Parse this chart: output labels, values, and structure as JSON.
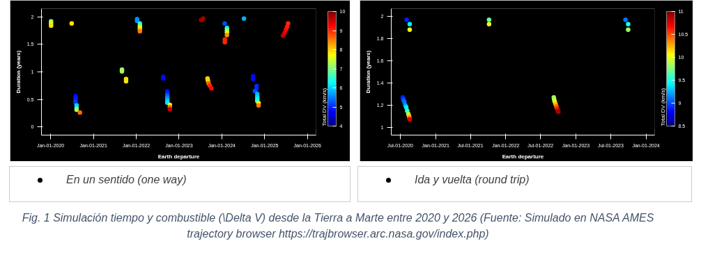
{
  "chart_data": [
    {
      "type": "scatter",
      "xlabel": "Earth departure",
      "ylabel": "Duration (years)",
      "clabel": "Total DV (km/s)",
      "marker": "circle",
      "annotations": [
        "En un sentido (one way)",
        "Fig. 1 Simulación tiempo y combustible (\\Delta V) desde la Tierra a Marte entre 2020 y 2026 (Fuente: Simulado en NASA AMES trajectory browser https://trajbrowser.arc.nasa.gov/index.php)"
      ],
      "xlim": [
        "2019-10-15",
        "2026-03-15"
      ],
      "ylim": [
        -0.15,
        2.15
      ],
      "xticks": [
        {
          "value": "2020-01-01",
          "label": "Jan-01-2020"
        },
        {
          "value": "2021-01-01",
          "label": "Jan-01-2021"
        },
        {
          "value": "2022-01-01",
          "label": "Jan-01-2022"
        },
        {
          "value": "2023-01-01",
          "label": "Jan-01-2023"
        },
        {
          "value": "2024-01-01",
          "label": "Jan-01-2024"
        },
        {
          "value": "2025-01-01",
          "label": "Jan-01-2025"
        },
        {
          "value": "2026-01-01",
          "label": "Jan-01-2026"
        }
      ],
      "yticks": [
        0,
        0.5,
        1,
        1.5,
        2
      ],
      "clim": [
        4,
        10
      ],
      "cticks": [
        4,
        5,
        6,
        7,
        8,
        9,
        10
      ],
      "x": [
        "2020-01-05",
        "2020-01-05",
        "2020-01-05",
        "2020-06-29",
        "2020-08-01",
        "2020-08-01",
        "2020-08-01",
        "2020-08-01",
        "2020-08-10",
        "2020-08-10",
        "2020-08-10",
        "2020-09-07",
        "2021-09-01",
        "2021-09-01",
        "2021-10-06",
        "2021-10-06",
        "2022-01-08",
        "2022-01-08",
        "2022-02-01",
        "2022-02-01",
        "2022-02-01",
        "2022-02-01",
        "2022-02-01",
        "2022-08-20",
        "2022-08-20",
        "2022-09-23",
        "2022-09-23",
        "2022-09-23",
        "2022-09-23",
        "2022-09-23",
        "2022-09-23",
        "2022-09-23",
        "2022-09-23",
        "2022-10-15",
        "2022-10-15",
        "2022-10-15",
        "2023-07-08",
        "2023-07-26",
        "2023-09-01",
        "2023-09-05",
        "2023-09-10",
        "2023-09-20",
        "2023-10-05",
        "2024-01-26",
        "2024-02-14",
        "2024-02-14",
        "2024-02-14",
        "2024-02-14",
        "2024-01-27",
        "2024-01-27",
        "2024-07-08",
        "2024-09-24",
        "2024-09-24",
        "2024-10-24",
        "2024-10-24",
        "2024-10-10",
        "2024-10-30",
        "2024-10-30",
        "2024-10-30",
        "2024-10-30",
        "2024-11-10",
        "2024-11-10",
        "2025-06-06",
        "2025-06-20",
        "2025-07-02",
        "2025-07-12",
        "2025-07-20"
      ],
      "values": [
        1.92,
        1.88,
        1.84,
        1.88,
        0.56,
        0.52,
        0.48,
        0.44,
        0.39,
        0.34,
        0.31,
        0.26,
        1.04,
        1.01,
        0.87,
        0.83,
        1.96,
        1.93,
        1.88,
        1.84,
        1.81,
        1.77,
        1.74,
        0.91,
        0.88,
        0.65,
        0.62,
        0.59,
        0.56,
        0.53,
        0.5,
        0.47,
        0.44,
        0.4,
        0.36,
        0.32,
        1.94,
        1.97,
        0.88,
        0.84,
        0.79,
        0.75,
        0.7,
        1.88,
        1.8,
        1.76,
        1.72,
        1.67,
        1.59,
        1.54,
        1.97,
        0.92,
        0.87,
        0.74,
        0.7,
        0.65,
        0.6,
        0.55,
        0.51,
        0.47,
        0.43,
        0.39,
        1.66,
        1.71,
        1.77,
        1.82,
        1.88
      ],
      "cvalues": [
        7.2,
        7.5,
        7.9,
        7.9,
        4.8,
        4.9,
        5.0,
        5.1,
        6.0,
        6.5,
        7.3,
        8.6,
        7.2,
        7.2,
        7.9,
        7.9,
        5.6,
        5.6,
        6.4,
        7.0,
        7.6,
        8.0,
        8.5,
        4.8,
        4.8,
        4.8,
        4.9,
        5.1,
        5.3,
        5.5,
        5.7,
        5.9,
        6.1,
        7.8,
        8.6,
        9.6,
        9.8,
        9.8,
        8.0,
        8.0,
        8.6,
        9.0,
        9.2,
        5.2,
        6.2,
        7.0,
        7.6,
        8.4,
        9.0,
        9.0,
        5.8,
        4.8,
        4.8,
        5.0,
        5.0,
        5.2,
        5.8,
        6.0,
        6.2,
        6.6,
        7.8,
        8.5,
        9.6,
        9.4,
        9.2,
        9.1,
        9.0
      ]
    },
    {
      "type": "scatter",
      "xlabel": "Earth departure",
      "ylabel": "Duration (years)",
      "clabel": "Total DV (km/s)",
      "marker": "circle",
      "annotations": [
        "Ida y vuelta (round trip)"
      ],
      "xlim": [
        "2020-05-15",
        "2024-02-15"
      ],
      "ylim": [
        0.93,
        2.07
      ],
      "xticks": [
        {
          "value": "2020-07-01",
          "label": "Jul-01-2020"
        },
        {
          "value": "2021-01-01",
          "label": "Jan-01-2021"
        },
        {
          "value": "2021-07-01",
          "label": "Jul-01-2021"
        },
        {
          "value": "2022-01-01",
          "label": "Jan-01-2022"
        },
        {
          "value": "2022-07-01",
          "label": "Jul-01-2022"
        },
        {
          "value": "2023-01-01",
          "label": "Jan-01-2023"
        },
        {
          "value": "2023-07-01",
          "label": "Jul-01-2023"
        },
        {
          "value": "2024-01-01",
          "label": "Jan-01-2024"
        }
      ],
      "yticks": [
        1,
        1.2,
        1.4,
        1.6,
        1.8,
        2
      ],
      "clim": [
        8.5,
        11
      ],
      "cticks": [
        8.5,
        9,
        9.5,
        10,
        10.5,
        11
      ],
      "x": [
        "2020-08-03",
        "2020-08-19",
        "2020-08-19",
        "2020-07-14",
        "2020-07-17",
        "2020-07-22",
        "2020-07-27",
        "2020-08-01",
        "2020-08-06",
        "2020-08-12",
        "2020-08-16",
        "2020-08-18",
        "2020-08-19",
        "2021-10-06",
        "2021-10-06",
        "2022-09-08",
        "2022-09-10",
        "2022-09-13",
        "2022-09-17",
        "2022-09-21",
        "2022-09-25",
        "2022-09-29",
        "2022-10-02",
        "2023-09-16",
        "2023-09-30",
        "2023-09-30"
      ],
      "values": [
        1.97,
        1.93,
        1.88,
        1.27,
        1.25,
        1.23,
        1.2,
        1.18,
        1.15,
        1.12,
        1.1,
        1.08,
        1.07,
        1.97,
        1.93,
        1.27,
        1.25,
        1.23,
        1.21,
        1.19,
        1.17,
        1.15,
        1.14,
        1.97,
        1.93,
        1.88
      ],
      "cvalues": [
        8.9,
        9.4,
        10.0,
        8.9,
        9.0,
        9.1,
        9.2,
        9.4,
        9.6,
        9.9,
        10.2,
        10.5,
        10.8,
        9.7,
        10.0,
        9.8,
        9.9,
        10.0,
        10.2,
        10.4,
        10.6,
        10.8,
        10.9,
        9.1,
        9.5,
        9.8
      ]
    }
  ]
}
